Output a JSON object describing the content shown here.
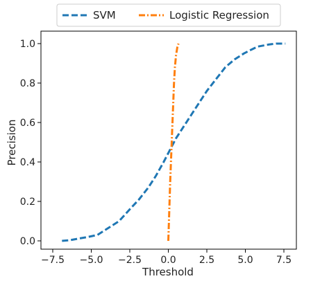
{
  "chart_data": {
    "type": "line",
    "xlabel": "Threshold",
    "ylabel": "Precision",
    "xlim": [
      -7.5,
      7.5
    ],
    "ylim": [
      0.0,
      1.0
    ],
    "xticks": [
      -7.5,
      -5.0,
      -2.5,
      0.0,
      2.5,
      5.0,
      7.5
    ],
    "xtick_labels": [
      "−7.5",
      "−5.0",
      "−2.5",
      "0.0",
      "2.5",
      "5.0",
      "7.5"
    ],
    "yticks": [
      0.0,
      0.2,
      0.4,
      0.6,
      0.8,
      1.0
    ],
    "ytick_labels": [
      "0.0",
      "0.2",
      "0.4",
      "0.6",
      "0.8",
      "1.0"
    ],
    "grid": false,
    "legend": {
      "placement": "top-center",
      "columns": 2
    },
    "series": [
      {
        "name": "SVM",
        "color": "#1f77b4",
        "linestyle": "dashed",
        "x": [
          -6.9,
          -6.4,
          -5.8,
          -5.2,
          -4.6,
          -3.9,
          -3.2,
          -2.5,
          -1.9,
          -1.3,
          -0.8,
          -0.3,
          0.1,
          0.5,
          1.0,
          1.5,
          2.0,
          2.5,
          3.1,
          3.7,
          4.3,
          4.9,
          5.4,
          5.8,
          6.5,
          7.0,
          7.6
        ],
        "y": [
          0.0,
          0.003,
          0.012,
          0.02,
          0.03,
          0.065,
          0.1,
          0.16,
          0.21,
          0.27,
          0.33,
          0.4,
          0.46,
          0.52,
          0.58,
          0.64,
          0.7,
          0.76,
          0.82,
          0.88,
          0.92,
          0.95,
          0.97,
          0.985,
          0.995,
          1.0,
          1.0
        ]
      },
      {
        "name": "Logistic Regression",
        "color": "#ff7f0e",
        "linestyle": "dashdot",
        "x": [
          0.0,
          0.04,
          0.08,
          0.12,
          0.17,
          0.22,
          0.27,
          0.32,
          0.37,
          0.43,
          0.5,
          0.58,
          0.66
        ],
        "y": [
          0.0,
          0.1,
          0.2,
          0.3,
          0.4,
          0.5,
          0.6,
          0.7,
          0.8,
          0.88,
          0.94,
          0.98,
          1.0
        ]
      }
    ]
  }
}
